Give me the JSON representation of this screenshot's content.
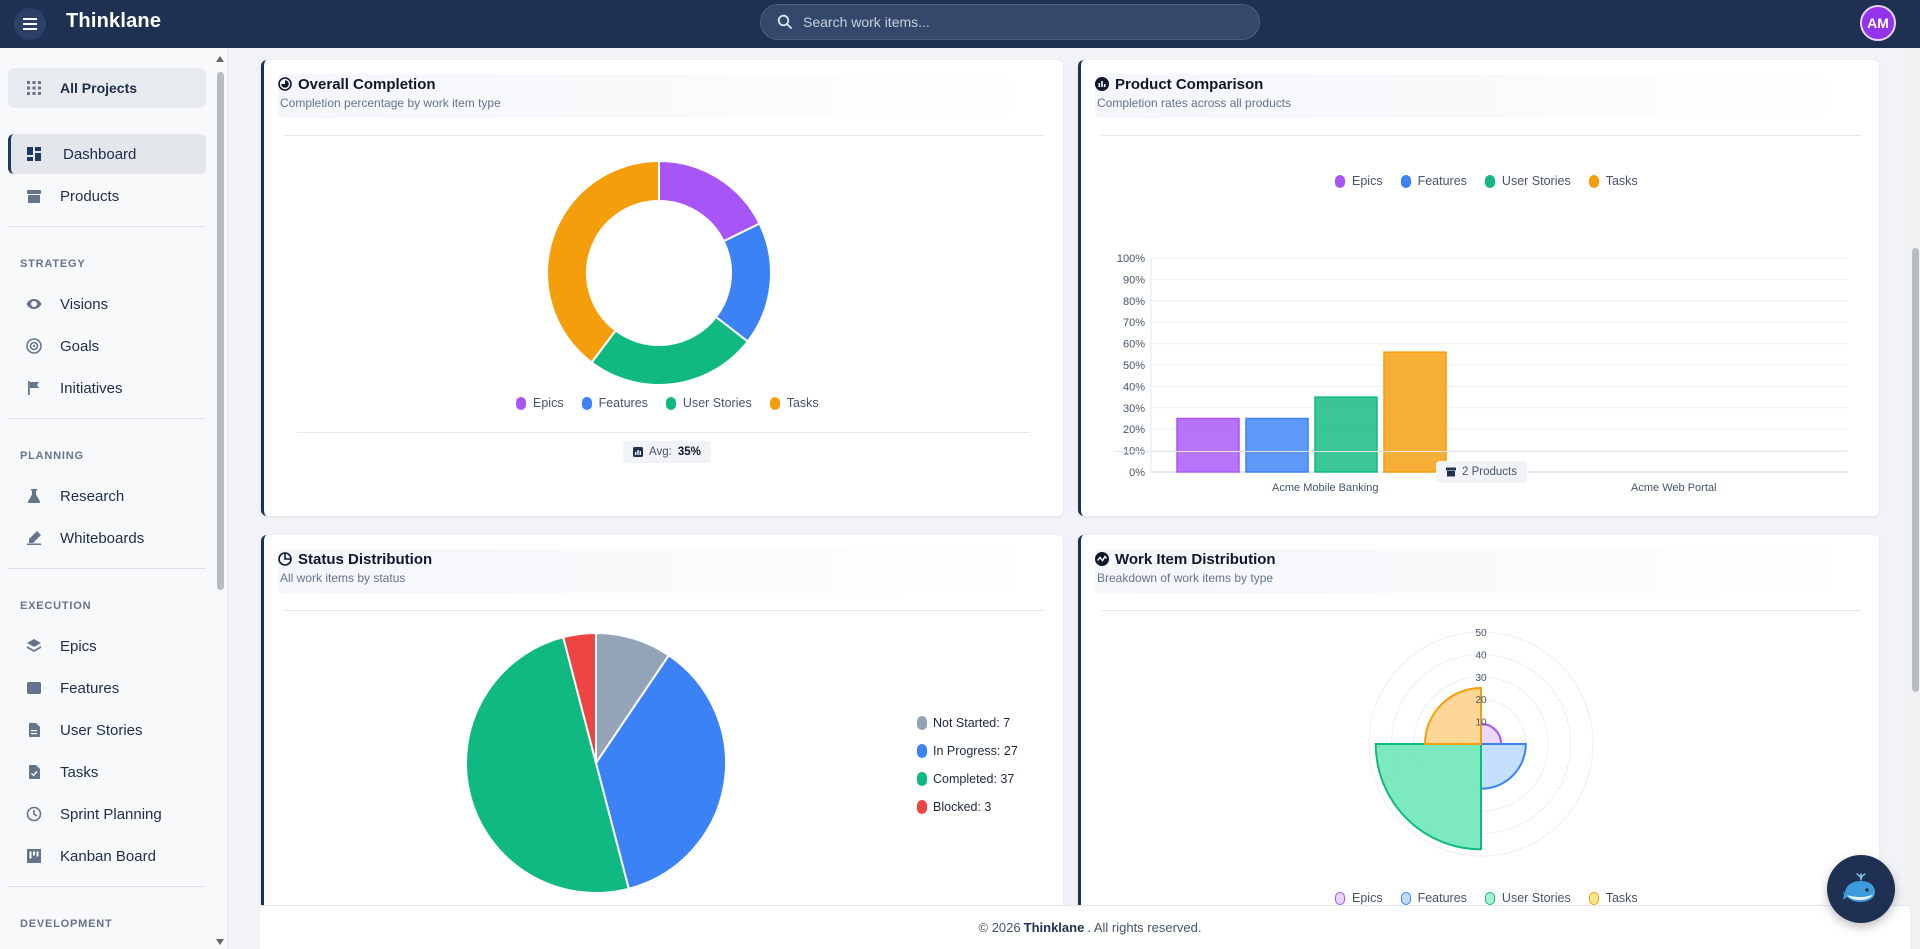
{
  "app": {
    "name": "Thinklane",
    "avatar_initials": "AM"
  },
  "search": {
    "placeholder": "Search work items..."
  },
  "sidebar": {
    "all_projects": "All Projects",
    "main": [
      {
        "label": "Dashboard",
        "icon": "dashboard-icon",
        "active": true
      },
      {
        "label": "Products",
        "icon": "archive-icon"
      }
    ],
    "sections": [
      {
        "title": "STRATEGY",
        "items": [
          {
            "label": "Visions",
            "icon": "eye-icon"
          },
          {
            "label": "Goals",
            "icon": "target-icon"
          },
          {
            "label": "Initiatives",
            "icon": "flag-icon"
          }
        ]
      },
      {
        "title": "PLANNING",
        "items": [
          {
            "label": "Research",
            "icon": "flask-icon"
          },
          {
            "label": "Whiteboards",
            "icon": "draw-icon"
          }
        ]
      },
      {
        "title": "EXECUTION",
        "items": [
          {
            "label": "Epics",
            "icon": "layers-icon"
          },
          {
            "label": "Features",
            "icon": "feature-icon"
          },
          {
            "label": "User Stories",
            "icon": "document-icon"
          },
          {
            "label": "Tasks",
            "icon": "task-icon"
          },
          {
            "label": "Sprint Planning",
            "icon": "sprint-icon"
          },
          {
            "label": "Kanban Board",
            "icon": "kanban-icon"
          }
        ]
      },
      {
        "title": "DEVELOPMENT",
        "items": []
      }
    ]
  },
  "colors": {
    "epics": "#a855f7",
    "features": "#3b82f6",
    "user_stories": "#10b981",
    "tasks": "#f59e0b",
    "not_started": "#94a3b8",
    "in_progress": "#3b82f6",
    "completed": "#10b981",
    "blocked": "#ef4444",
    "brand": "#1f3152"
  },
  "legend": [
    "Epics",
    "Features",
    "User Stories",
    "Tasks"
  ],
  "cards": {
    "overall": {
      "title": "Overall Completion",
      "subtitle": "Completion percentage by work item type",
      "avg_label": "Avg:",
      "avg_value": "35%"
    },
    "product": {
      "title": "Product Comparison",
      "subtitle": "Completion rates across all products",
      "footer": "2 Products"
    },
    "status": {
      "title": "Status Distribution",
      "subtitle": "All work items by status"
    },
    "workitem": {
      "title": "Work Item Distribution",
      "subtitle": "Breakdown of work items by type"
    }
  },
  "status_legend": [
    "Not Started: 7",
    "In Progress: 27",
    "Completed: 37",
    "Blocked: 3"
  ],
  "footer": {
    "prefix": "© 2026",
    "brand": "Thinklane",
    "suffix": ". All rights reserved."
  },
  "chart_data": [
    {
      "type": "pie",
      "title": "Overall Completion",
      "labels": [
        "Epics",
        "Features",
        "User Stories",
        "Tasks"
      ],
      "values": [
        25,
        25,
        35,
        56
      ]
    },
    {
      "type": "bar",
      "title": "Product Comparison",
      "categories": [
        "Acme Mobile Banking",
        "Acme Web Portal"
      ],
      "series": [
        {
          "name": "Epics",
          "values": [
            25,
            0
          ]
        },
        {
          "name": "Features",
          "values": [
            25,
            0
          ]
        },
        {
          "name": "User Stories",
          "values": [
            35,
            0
          ]
        },
        {
          "name": "Tasks",
          "values": [
            56,
            0
          ]
        }
      ],
      "ylim": [
        0,
        100
      ],
      "yticks": [
        "0%",
        "10%",
        "20%",
        "30%",
        "40%",
        "50%",
        "60%",
        "70%",
        "80%",
        "90%",
        "100%"
      ],
      "legend": "top"
    },
    {
      "type": "pie",
      "title": "Status Distribution",
      "labels": [
        "Not Started",
        "In Progress",
        "Completed",
        "Blocked"
      ],
      "values": [
        7,
        27,
        37,
        3
      ],
      "legend": "right"
    },
    {
      "type": "polar-area",
      "title": "Work Item Distribution",
      "labels": [
        "Epics",
        "Features",
        "User Stories",
        "Tasks"
      ],
      "values": [
        9,
        20,
        47,
        25
      ],
      "ticks": [
        10,
        20,
        30,
        40,
        50
      ],
      "rmax": 50,
      "legend": "bottom"
    }
  ]
}
